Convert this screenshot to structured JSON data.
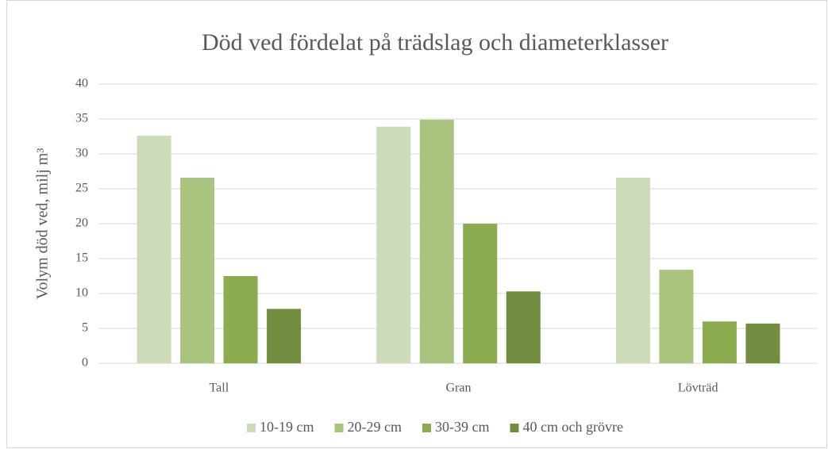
{
  "chart_data": {
    "type": "bar",
    "title": "Död ved fördelat på trädslag och diameterklasser",
    "y_label": "Volym död ved, milj m³",
    "categories": [
      "Tall",
      "Gran",
      "Lövträd"
    ],
    "series": [
      {
        "name": "10-19 cm",
        "color": "#ccdcb8",
        "values": [
          32.6,
          33.9,
          26.6
        ]
      },
      {
        "name": "20-29 cm",
        "color": "#a9c47f",
        "values": [
          26.6,
          34.9,
          13.4
        ]
      },
      {
        "name": "30-39 cm",
        "color": "#8aab4e",
        "values": [
          12.5,
          20,
          6
        ]
      },
      {
        "name": "40 cm och grövre",
        "color": "#728c40",
        "values": [
          7.8,
          10.3,
          5.7
        ]
      }
    ],
    "ylim": [
      0,
      40
    ],
    "yticks": [
      0,
      5,
      10,
      15,
      20,
      25,
      30,
      35,
      40
    ],
    "grid": true,
    "legend": "bottom"
  }
}
